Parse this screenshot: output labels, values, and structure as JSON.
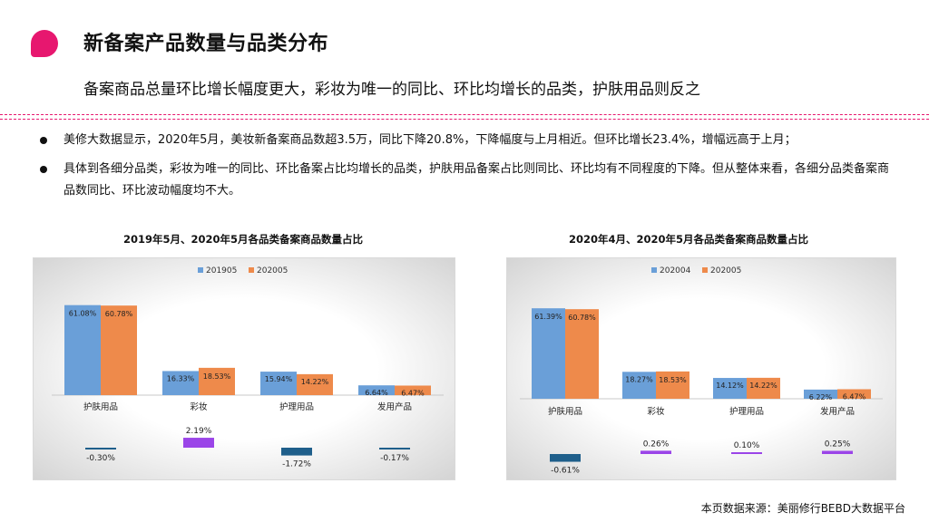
{
  "header": {
    "title": "新备案产品数量与品类分布",
    "subtitle": "备案商品总量环比增长幅度更大，彩妆为唯一的同比、环比均增长的品类，护肤用品则反之"
  },
  "bullets": [
    "美修大数据显示，2020年5月，美妆新备案商品数超3.5万，同比下降20.8%，下降幅度与上月相近。但环比增长23.4%，增幅远高于上月；",
    "具体到各细分品类，彩妆为唯一的同比、环比备案占比均增长的品类，护肤用品备案占比则同比、环比均有不同程度的下降。但从整体来看，各细分品类备案商品数同比、环比波动幅度均不大。"
  ],
  "chart_titles": {
    "left": "2019年5月、2020年5月各品类备案商品数量占比",
    "right": "2020年4月、2020年5月各品类备案商品数量占比"
  },
  "source": "本页数据来源：美丽修行BEBD大数据平台",
  "colors": {
    "accent": "#e7176f",
    "series_blue": "#6a9fd8",
    "series_orange": "#ee8a4b",
    "diff_negative": "#1f5f8b",
    "diff_positive": "#9b45e8"
  },
  "chart_data": [
    {
      "type": "bar",
      "categories": [
        "护肤用品",
        "彩妆",
        "护理用品",
        "发用产品"
      ],
      "series": [
        {
          "name": "201905",
          "values": [
            61.08,
            16.33,
            15.94,
            6.64
          ],
          "labels": [
            "61.08%",
            "16.33%",
            "15.94%",
            "6.64%"
          ]
        },
        {
          "name": "202005",
          "values": [
            60.78,
            18.53,
            14.22,
            6.47
          ],
          "labels": [
            "60.78%",
            "18.53%",
            "14.22%",
            "6.47%"
          ]
        }
      ],
      "difference": {
        "values": [
          -0.3,
          2.19,
          -1.72,
          -0.17
        ],
        "labels": [
          "-0.30%",
          "2.19%",
          "-1.72%",
          "-0.17%"
        ]
      }
    },
    {
      "type": "bar",
      "categories": [
        "护肤用品",
        "彩妆",
        "护理用品",
        "发用产品"
      ],
      "series": [
        {
          "name": "202004",
          "values": [
            61.39,
            18.27,
            14.12,
            6.22
          ],
          "labels": [
            "61.39%",
            "18.27%",
            "14.12%",
            "6.22%"
          ]
        },
        {
          "name": "202005",
          "values": [
            60.78,
            18.53,
            14.22,
            6.47
          ],
          "labels": [
            "60.78%",
            "18.53%",
            "14.22%",
            "6.47%"
          ]
        }
      ],
      "difference": {
        "values": [
          -0.61,
          0.26,
          0.1,
          0.25
        ],
        "labels": [
          "-0.61%",
          "0.26%",
          "0.10%",
          "0.25%"
        ]
      }
    }
  ]
}
